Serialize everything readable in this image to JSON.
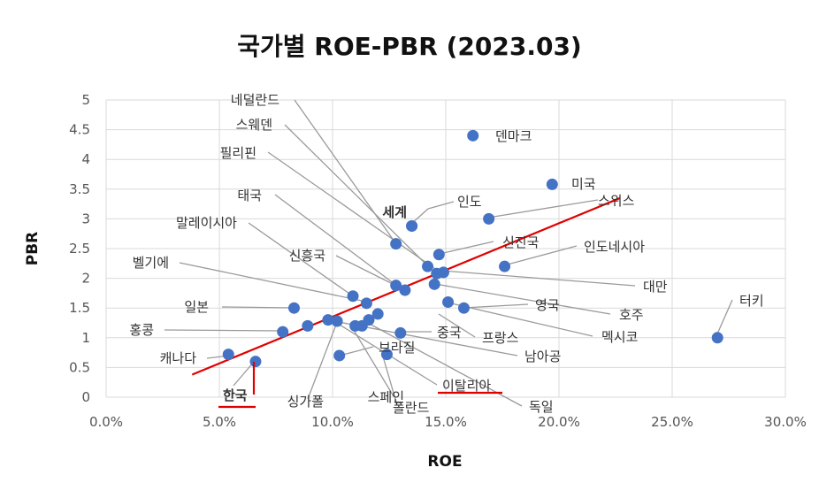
{
  "chart_data": {
    "type": "scatter",
    "title": "국가별 ROE-PBR (2023.03)",
    "xlabel": "ROE",
    "ylabel": "PBR",
    "xlim": [
      0,
      0.3
    ],
    "ylim": [
      0,
      5
    ],
    "x_ticks": [
      "0.0%",
      "5.0%",
      "10.0%",
      "15.0%",
      "20.0%",
      "25.0%",
      "30.0%"
    ],
    "y_ticks": [
      "0",
      "0.5",
      "1",
      "1.5",
      "2",
      "2.5",
      "3",
      "3.5",
      "4",
      "4.5",
      "5"
    ],
    "grid": true,
    "marker_color": "#4472C4",
    "trendline_color": "#E00000",
    "trendline": {
      "x": [
        0.038,
        0.227
      ],
      "y": [
        0.38,
        3.35
      ]
    },
    "points": [
      {
        "label": "덴마크",
        "x": 0.162,
        "y": 4.4
      },
      {
        "label": "미국",
        "x": 0.197,
        "y": 3.58
      },
      {
        "label": "스위스",
        "x": 0.169,
        "y": 3.0
      },
      {
        "label": "세계",
        "x": 0.135,
        "y": 2.88
      },
      {
        "label": "인도",
        "x": 0.135,
        "y": 2.88
      },
      {
        "label": "네덜란드",
        "x": 0.128,
        "y": 2.58
      },
      {
        "label": "신진국",
        "x": 0.147,
        "y": 2.4
      },
      {
        "label": "인도네시아",
        "x": 0.176,
        "y": 2.2
      },
      {
        "label": "스웨덴",
        "x": 0.142,
        "y": 2.2
      },
      {
        "label": "대만",
        "x": 0.149,
        "y": 2.1
      },
      {
        "label": "필리핀",
        "x": 0.146,
        "y": 2.08
      },
      {
        "label": "호주",
        "x": 0.145,
        "y": 1.9
      },
      {
        "label": "태국",
        "x": 0.128,
        "y": 1.88
      },
      {
        "label": "신흥국",
        "x": 0.132,
        "y": 1.8
      },
      {
        "label": "말레이시아",
        "x": 0.109,
        "y": 1.7
      },
      {
        "label": "멕시코",
        "x": 0.151,
        "y": 1.6
      },
      {
        "label": "영국",
        "x": 0.158,
        "y": 1.5
      },
      {
        "label": "벨기에",
        "x": 0.115,
        "y": 1.58
      },
      {
        "label": "일본",
        "x": 0.083,
        "y": 1.5
      },
      {
        "label": "프랑스",
        "x": 0.12,
        "y": 1.4
      },
      {
        "label": "중국",
        "x": 0.116,
        "y": 1.3
      },
      {
        "label": "터키",
        "x": 0.27,
        "y": 1.0
      },
      {
        "label": "홍콩",
        "x": 0.078,
        "y": 1.1
      },
      {
        "label": "싱가폴",
        "x": 0.089,
        "y": 1.2
      },
      {
        "label": "스페인",
        "x": 0.11,
        "y": 1.2
      },
      {
        "label": "독일",
        "x": 0.113,
        "y": 1.2
      },
      {
        "label": "브라질",
        "x": 0.13,
        "y": 1.08
      },
      {
        "label": "남아공",
        "x": 0.098,
        "y": 1.3
      },
      {
        "label": "이탈리아",
        "x": 0.102,
        "y": 1.28
      },
      {
        "label": "폴란드",
        "x": 0.124,
        "y": 0.72
      },
      {
        "label": "캐나다",
        "x": 0.054,
        "y": 0.72
      },
      {
        "label": "한국",
        "x": 0.066,
        "y": 0.6
      },
      {
        "label": "",
        "x": 0.103,
        "y": 0.7
      }
    ]
  }
}
